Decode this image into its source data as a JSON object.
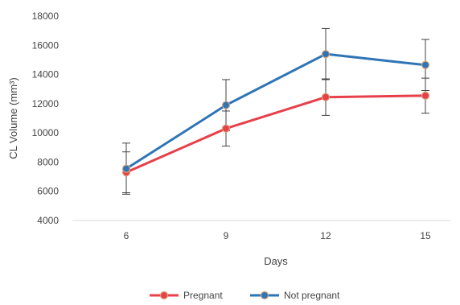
{
  "chart_data": {
    "type": "line",
    "title": "",
    "xlabel": "Days",
    "ylabel": "CL Volume (mm³)",
    "x": [
      6,
      9,
      12,
      15
    ],
    "ylim": [
      4000,
      18000
    ],
    "yticks": [
      4000,
      6000,
      8000,
      10000,
      12000,
      14000,
      16000,
      18000
    ],
    "grid": false,
    "legend_position": "bottom",
    "series": [
      {
        "name": "Pregnant",
        "color": "#e8404a",
        "values": [
          7300,
          10300,
          12450,
          12550
        ],
        "error": [
          1400,
          1200,
          1250,
          1200
        ]
      },
      {
        "name": "Not pregnant",
        "color": "#2e75b6",
        "values": [
          7550,
          11900,
          15400,
          14650
        ],
        "error": [
          1750,
          1750,
          1750,
          1750
        ]
      }
    ]
  }
}
